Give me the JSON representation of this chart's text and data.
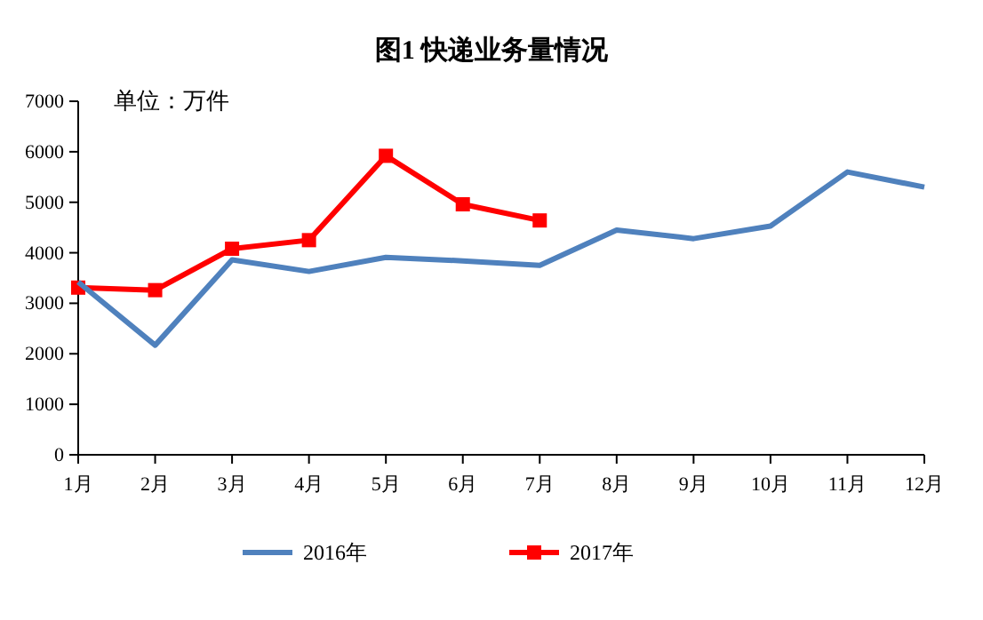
{
  "chart_data": {
    "type": "line",
    "title": "图1  快递业务量情况",
    "annotations": [
      "单位：万件"
    ],
    "categories": [
      "1月",
      "2月",
      "3月",
      "4月",
      "5月",
      "6月",
      "7月",
      "8月",
      "9月",
      "10月",
      "11月",
      "12月"
    ],
    "series": [
      {
        "name": "2016年",
        "color": "#4f81bd",
        "marker": "none",
        "values": [
          3420,
          2170,
          3860,
          3630,
          3910,
          3840,
          3750,
          4450,
          4280,
          4530,
          5600,
          5300
        ]
      },
      {
        "name": "2017年",
        "color": "#ff0000",
        "marker": "square",
        "values": [
          3310,
          3260,
          4080,
          4250,
          5920,
          4960,
          4640,
          null,
          null,
          null,
          null,
          null
        ]
      }
    ],
    "ylim": [
      0,
      7000
    ],
    "yticks": [
      0,
      1000,
      2000,
      3000,
      4000,
      5000,
      6000,
      7000
    ],
    "grid": false,
    "legend": "bottom",
    "line_style": "solid"
  }
}
